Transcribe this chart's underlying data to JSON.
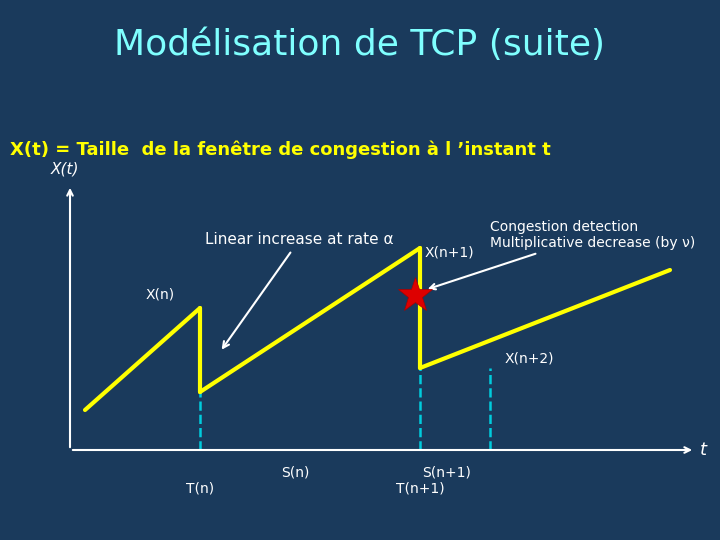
{
  "title": "Modélisation de TCP (suite)",
  "subtitle": "X(t) = Taille  de la fenêtre de congestion à l ’instant t",
  "bg_color": "#1a3a5c",
  "title_color": "#7fffff",
  "subtitle_color": "#ffff00",
  "white": "#ffffff",
  "yellow": "#ffff00",
  "cyan_dash": "#00ccdd",
  "red_star": "#dd0000",
  "alpha_symbol": "α",
  "nu_symbol": "ν"
}
